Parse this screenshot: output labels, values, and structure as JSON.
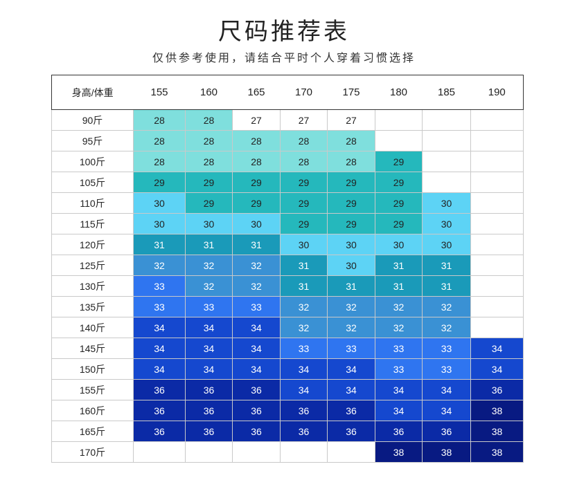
{
  "title": "尺码推荐表",
  "subtitle": "仅供参考使用，请结合平时个人穿着习惯选择",
  "header": [
    "身高/体重",
    "155",
    "160",
    "165",
    "170",
    "175",
    "180",
    "185",
    "190"
  ],
  "colors": {
    "27": "#ffffff",
    "28": "#7fdfdd",
    "29": "#25b8bc",
    "30": "#5dd3f5",
    "31": "#1a9ab9",
    "32": "#3a91d4",
    "33": "#2f75f0",
    "34": "#1548cf",
    "36": "#0b2aa6",
    "38": "#081a82"
  },
  "rows": [
    {
      "label": "90斤",
      "cells": [
        "28",
        "28",
        "27",
        "27",
        "27",
        "",
        "",
        ""
      ]
    },
    {
      "label": "95斤",
      "cells": [
        "28",
        "28",
        "28",
        "28",
        "28",
        "",
        "",
        ""
      ]
    },
    {
      "label": "100斤",
      "cells": [
        "28",
        "28",
        "28",
        "28",
        "28",
        "29",
        "",
        ""
      ]
    },
    {
      "label": "105斤",
      "cells": [
        "29",
        "29",
        "29",
        "29",
        "29",
        "29",
        "",
        ""
      ]
    },
    {
      "label": "110斤",
      "cells": [
        "30",
        "29",
        "29",
        "29",
        "29",
        "29",
        "30",
        ""
      ]
    },
    {
      "label": "115斤",
      "cells": [
        "30",
        "30",
        "30",
        "29",
        "29",
        "29",
        "30",
        ""
      ]
    },
    {
      "label": "120斤",
      "cells": [
        "31",
        "31",
        "31",
        "30",
        "30",
        "30",
        "30",
        ""
      ]
    },
    {
      "label": "125斤",
      "cells": [
        "32",
        "32",
        "32",
        "31",
        "30",
        "31",
        "31",
        ""
      ]
    },
    {
      "label": "130斤",
      "cells": [
        "33",
        "32",
        "32",
        "31",
        "31",
        "31",
        "31",
        ""
      ]
    },
    {
      "label": "135斤",
      "cells": [
        "33",
        "33",
        "33",
        "32",
        "32",
        "32",
        "32",
        ""
      ]
    },
    {
      "label": "140斤",
      "cells": [
        "34",
        "34",
        "34",
        "32",
        "32",
        "32",
        "32",
        ""
      ]
    },
    {
      "label": "145斤",
      "cells": [
        "34",
        "34",
        "34",
        "33",
        "33",
        "33",
        "33",
        "34"
      ]
    },
    {
      "label": "150斤",
      "cells": [
        "34",
        "34",
        "34",
        "34",
        "34",
        "33",
        "33",
        "34"
      ]
    },
    {
      "label": "155斤",
      "cells": [
        "36",
        "36",
        "36",
        "34",
        "34",
        "34",
        "34",
        "36"
      ]
    },
    {
      "label": "160斤",
      "cells": [
        "36",
        "36",
        "36",
        "36",
        "36",
        "34",
        "34",
        "38"
      ]
    },
    {
      "label": "165斤",
      "cells": [
        "36",
        "36",
        "36",
        "36",
        "36",
        "36",
        "36",
        "38"
      ]
    },
    {
      "label": "170斤",
      "cells": [
        "",
        "",
        "",
        "",
        "",
        "38",
        "38",
        "38"
      ]
    }
  ]
}
